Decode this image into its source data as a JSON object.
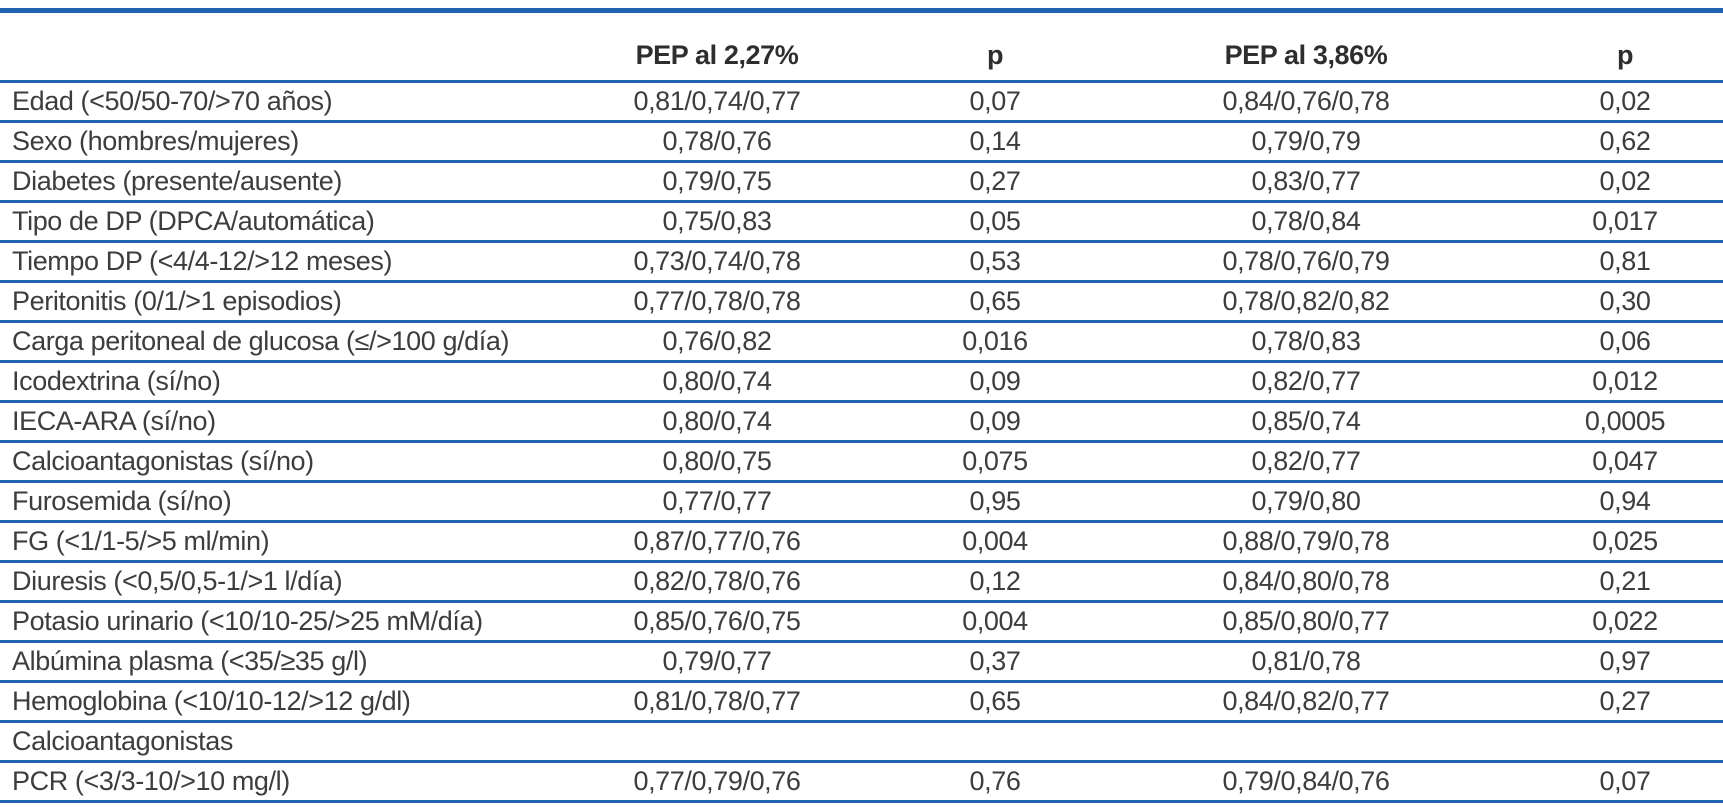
{
  "colors": {
    "rule_blue": "#2163ae",
    "text_body": "#3d3d3d",
    "text_header": "#2e2e2e",
    "background": "#ffffff"
  },
  "table": {
    "columns": [
      "",
      "PEP al 2,27%",
      "p",
      "PEP al 3,86%",
      "p"
    ],
    "rows": [
      {
        "label": "Edad (<50/50-70/>70 años)",
        "pep_2_27": "0,81/0,74/0,77",
        "p_2_27": "0,07",
        "pep_3_86": "0,84/0,76/0,78",
        "p_3_86": "0,02"
      },
      {
        "label": "Sexo (hombres/mujeres)",
        "pep_2_27": "0,78/0,76",
        "p_2_27": "0,14",
        "pep_3_86": "0,79/0,79",
        "p_3_86": "0,62"
      },
      {
        "label": "Diabetes (presente/ausente)",
        "pep_2_27": "0,79/0,75",
        "p_2_27": "0,27",
        "pep_3_86": "0,83/0,77",
        "p_3_86": "0,02"
      },
      {
        "label": "Tipo de DP (DPCA/automática)",
        "pep_2_27": "0,75/0,83",
        "p_2_27": "0,05",
        "pep_3_86": "0,78/0,84",
        "p_3_86": "0,017"
      },
      {
        "label": "Tiempo DP (<4/4-12/>12 meses)",
        "pep_2_27": "0,73/0,74/0,78",
        "p_2_27": "0,53",
        "pep_3_86": "0,78/0,76/0,79",
        "p_3_86": "0,81"
      },
      {
        "label": "Peritonitis (0/1/>1 episodios)",
        "pep_2_27": "0,77/0,78/0,78",
        "p_2_27": "0,65",
        "pep_3_86": "0,78/0,82/0,82",
        "p_3_86": "0,30"
      },
      {
        "label": "Carga peritoneal de glucosa (≤/>100 g/día)",
        "pep_2_27": "0,76/0,82",
        "p_2_27": "0,016",
        "pep_3_86": "0,78/0,83",
        "p_3_86": "0,06"
      },
      {
        "label": "Icodextrina (sí/no)",
        "pep_2_27": "0,80/0,74",
        "p_2_27": "0,09",
        "pep_3_86": "0,82/0,77",
        "p_3_86": "0,012"
      },
      {
        "label": "IECA-ARA (sí/no)",
        "pep_2_27": "0,80/0,74",
        "p_2_27": "0,09",
        "pep_3_86": "0,85/0,74",
        "p_3_86": "0,0005"
      },
      {
        "label": "Calcioantagonistas (sí/no)",
        "pep_2_27": "0,80/0,75",
        "p_2_27": "0,075",
        "pep_3_86": "0,82/0,77",
        "p_3_86": "0,047"
      },
      {
        "label": "Furosemida (sí/no)",
        "pep_2_27": "0,77/0,77",
        "p_2_27": "0,95",
        "pep_3_86": "0,79/0,80",
        "p_3_86": "0,94"
      },
      {
        "label": "FG (<1/1-5/>5 ml/min)",
        "pep_2_27": "0,87/0,77/0,76",
        "p_2_27": "0,004",
        "pep_3_86": "0,88/0,79/0,78",
        "p_3_86": "0,025"
      },
      {
        "label": "Diuresis (<0,5/0,5-1/>1 l/día)",
        "pep_2_27": "0,82/0,78/0,76",
        "p_2_27": "0,12",
        "pep_3_86": "0,84/0,80/0,78",
        "p_3_86": "0,21"
      },
      {
        "label": "Potasio urinario (<10/10-25/>25 mM/día)",
        "pep_2_27": "0,85/0,76/0,75",
        "p_2_27": "0,004",
        "pep_3_86": "0,85/0,80/0,77",
        "p_3_86": "0,022"
      },
      {
        "label": "Albúmina plasma (<35/≥35 g/l)",
        "pep_2_27": "0,79/0,77",
        "p_2_27": "0,37",
        "pep_3_86": "0,81/0,78",
        "p_3_86": "0,97"
      },
      {
        "label": "Hemoglobina (<10/10-12/>12 g/dl)",
        "pep_2_27": "0,81/0,78/0,77",
        "p_2_27": "0,65",
        "pep_3_86": "0,84/0,82/0,77",
        "p_3_86": "0,27"
      },
      {
        "label": "Calcioantagonistas",
        "pep_2_27": "",
        "p_2_27": "",
        "pep_3_86": "",
        "p_3_86": ""
      },
      {
        "label": "PCR (<3/3-10/>10 mg/l)",
        "pep_2_27": "0,77/0,79/0,76",
        "p_2_27": "0,76",
        "pep_3_86": "0,79/0,84/0,76",
        "p_3_86": "0,07"
      }
    ]
  }
}
